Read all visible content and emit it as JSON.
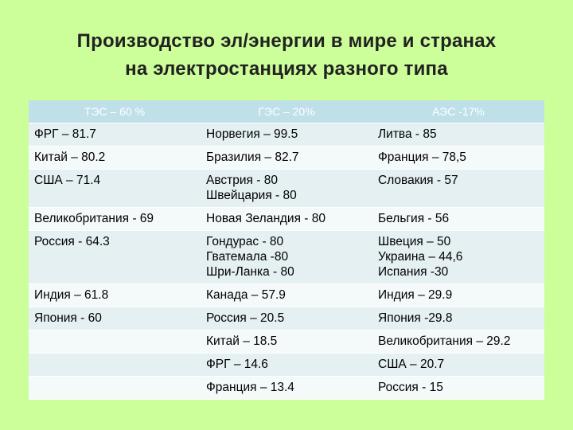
{
  "title": {
    "line1": "Производство  эл/энергии в мире и странах",
    "line2": "на электростанциях разного типа"
  },
  "table": {
    "headers": [
      "ТЭС – 60 %",
      "ГЭС – 20%",
      "АЭС -17%"
    ],
    "rows": [
      [
        [
          "ФРГ – 81.7"
        ],
        [
          "Норвегия – 99.5"
        ],
        [
          "Литва - 85"
        ]
      ],
      [
        [
          "Китай – 80.2"
        ],
        [
          "Бразилия – 82.7"
        ],
        [
          "Франция – 78,5"
        ]
      ],
      [
        [
          "США – 71.4"
        ],
        [
          "Австрия - 80",
          "Швейцария - 80"
        ],
        [
          "Словакия - 57"
        ]
      ],
      [
        [
          "Великобритания - 69"
        ],
        [
          "Новая Зеландия - 80"
        ],
        [
          "Бельгия - 56"
        ]
      ],
      [
        [
          "Россия - 64.3"
        ],
        [
          "Гондурас - 80",
          "Гватемала -80",
          "Шри-Ланка - 80"
        ],
        [
          "Швеция – 50",
          "Украина – 44,6",
          "Испания -30"
        ]
      ],
      [
        [
          "Индия – 61.8"
        ],
        [
          "Канада – 57.9"
        ],
        [
          "Индия – 29.9"
        ]
      ],
      [
        [
          "Япония - 60"
        ],
        [
          "Россия – 20.5"
        ],
        [
          "Япония -29.8"
        ]
      ],
      [
        [],
        [
          "Китай – 18.5"
        ],
        [
          "Великобритания – 29.2"
        ]
      ],
      [
        [],
        [
          "ФРГ – 14.6"
        ],
        [
          "США – 20.7"
        ]
      ],
      [
        [],
        [
          "Франция – 13.4"
        ],
        [
          "Россия - 15"
        ]
      ]
    ]
  }
}
